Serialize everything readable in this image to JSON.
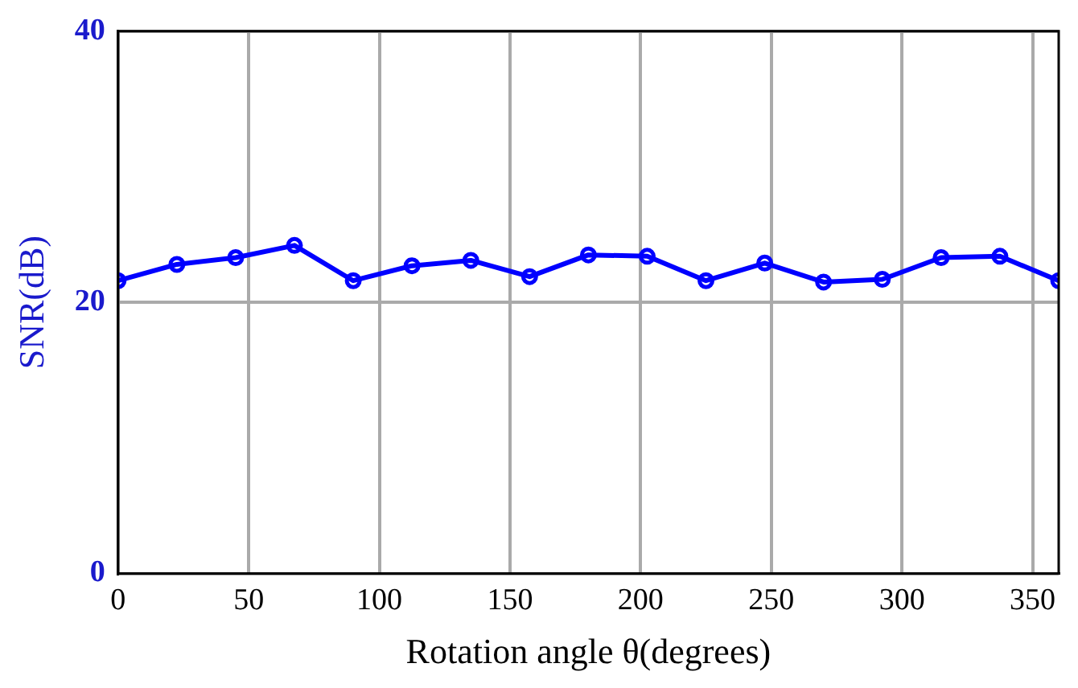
{
  "chart_data": {
    "type": "line",
    "xlabel": "Rotation angle θ(degrees)",
    "ylabel": "SNR(dB)",
    "x": [
      0,
      22.5,
      45,
      67.5,
      90,
      112.5,
      135,
      157.5,
      180,
      202.5,
      225,
      247.5,
      270,
      292.5,
      315,
      337.5,
      360
    ],
    "series": [
      {
        "color": "#0000ff",
        "values": [
          21.6,
          22.8,
          23.3,
          24.2,
          21.6,
          22.7,
          23.1,
          21.9,
          23.5,
          23.4,
          21.6,
          22.9,
          21.5,
          21.7,
          23.3,
          23.4,
          21.6
        ]
      }
    ],
    "xlim": [
      0,
      360
    ],
    "xticks": [
      0,
      50,
      100,
      150,
      200,
      250,
      300,
      350
    ],
    "ylim": [
      0,
      40
    ],
    "yticks": [
      0,
      20,
      40
    ],
    "grid": true,
    "legend": false,
    "marker": "circle",
    "line_style": "solid"
  }
}
